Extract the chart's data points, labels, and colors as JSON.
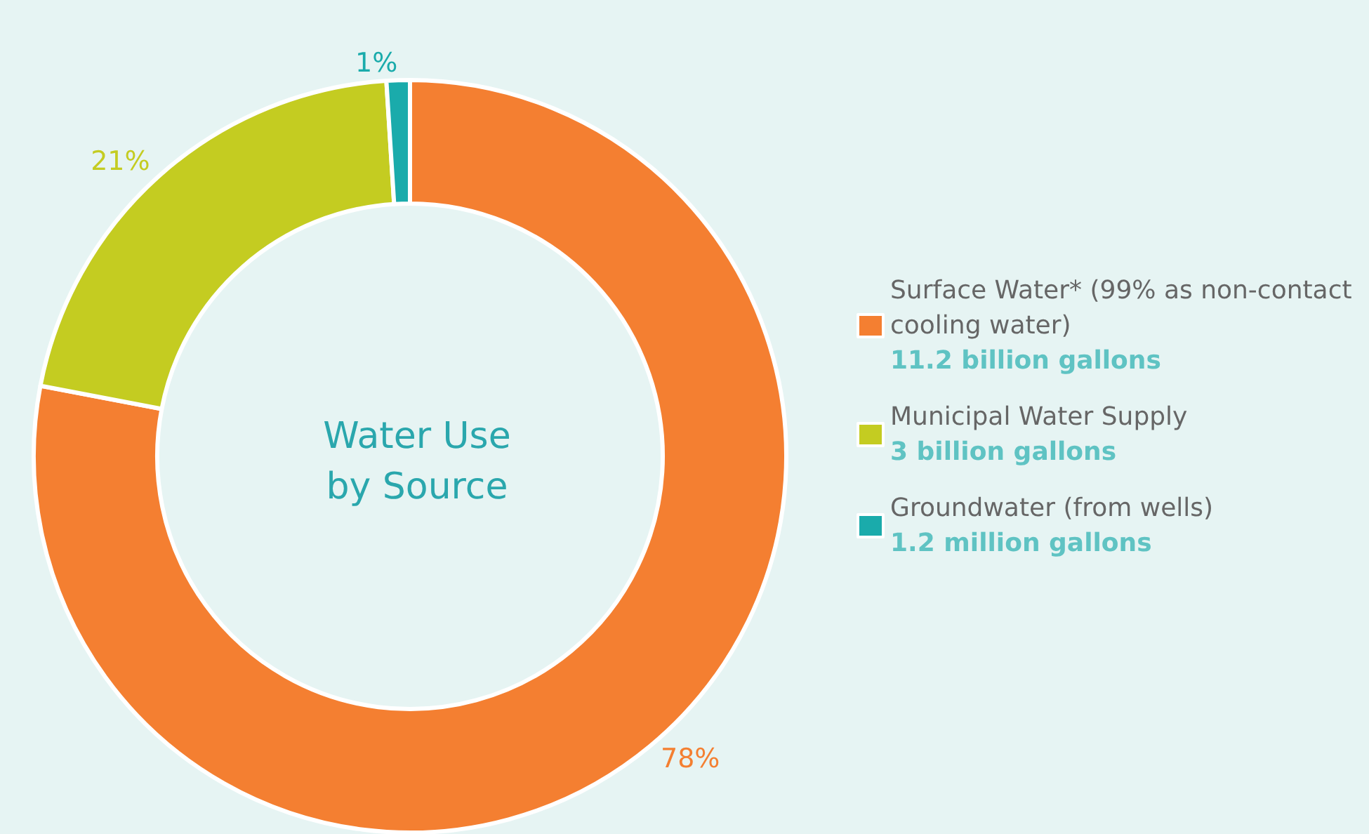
{
  "chart_data": {
    "type": "donut",
    "title": "Water Use by Source",
    "categories": [
      "Surface Water* (99% as non-contact cooling water)",
      "Municipal Water Supply",
      "Groundwater (from wells)"
    ],
    "values": [
      78,
      21,
      1
    ],
    "value_labels": [
      "78%",
      "21%",
      "1%"
    ],
    "colors": [
      "#f47f31",
      "#c4cc21",
      "#1aabab"
    ],
    "annotations": [
      "11.2 billion gallons",
      "3 billion gallons",
      "1.2 million gallons"
    ],
    "legend": "right"
  }
}
